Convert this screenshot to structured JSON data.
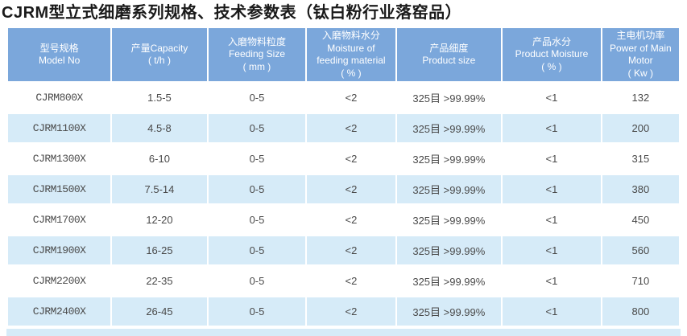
{
  "title": "CJRM型立式细磨系列规格、技术参数表（钛白粉行业落窑品）",
  "colors": {
    "header_bg": "#7BA7DB",
    "row_alt_bg": "#D6EBF8",
    "row_bg": "#FFFFFF",
    "header_text": "#FFFFFF",
    "body_text": "#4A4A4A",
    "title_text": "#1A1A1A"
  },
  "table": {
    "headers": [
      {
        "lines": [
          "型号规格",
          "Model No"
        ]
      },
      {
        "lines": [
          "产量Capacity",
          "( t/h )"
        ]
      },
      {
        "lines": [
          "入磨物料粒度",
          "Feeding Size",
          "( mm )"
        ]
      },
      {
        "lines": [
          "入磨物料水分",
          "Moisture of",
          "feeding material",
          "( % )"
        ]
      },
      {
        "lines": [
          "产品细度",
          "Product size"
        ]
      },
      {
        "lines": [
          "产品水分",
          "Product Moisture",
          "( % )"
        ]
      },
      {
        "lines": [
          "主电机功率",
          "Power of Main",
          "Motor",
          "( Kw )"
        ]
      }
    ],
    "rows": [
      {
        "cells": [
          "CJRM800X",
          "1.5-5",
          "0-5",
          "<2",
          "325目 >99.99%",
          "<1",
          "132"
        ]
      },
      {
        "cells": [
          "CJRM1100X",
          "4.5-8",
          "0-5",
          "<2",
          "325目 >99.99%",
          "<1",
          "200"
        ]
      },
      {
        "cells": [
          "CJRM1300X",
          "6-10",
          "0-5",
          "<2",
          "325目 >99.99%",
          "<1",
          "315"
        ]
      },
      {
        "cells": [
          "CJRM1500X",
          "7.5-14",
          "0-5",
          "<2",
          "325目 >99.99%",
          "<1",
          "380"
        ]
      },
      {
        "cells": [
          "CJRM1700X",
          "12-20",
          "0-5",
          "<2",
          "325目 >99.99%",
          "<1",
          "450"
        ]
      },
      {
        "cells": [
          "CJRM1900X",
          "16-25",
          "0-5",
          "<2",
          "325目 >99.99%",
          "<1",
          "560"
        ]
      },
      {
        "cells": [
          "CJRM2200X",
          "22-35",
          "0-5",
          "<2",
          "325目 >99.99%",
          "<1",
          "710"
        ]
      },
      {
        "cells": [
          "CJRM2400X",
          "26-45",
          "0-5",
          "<2",
          "325目 >99.99%",
          "<1",
          "800"
        ]
      }
    ]
  }
}
